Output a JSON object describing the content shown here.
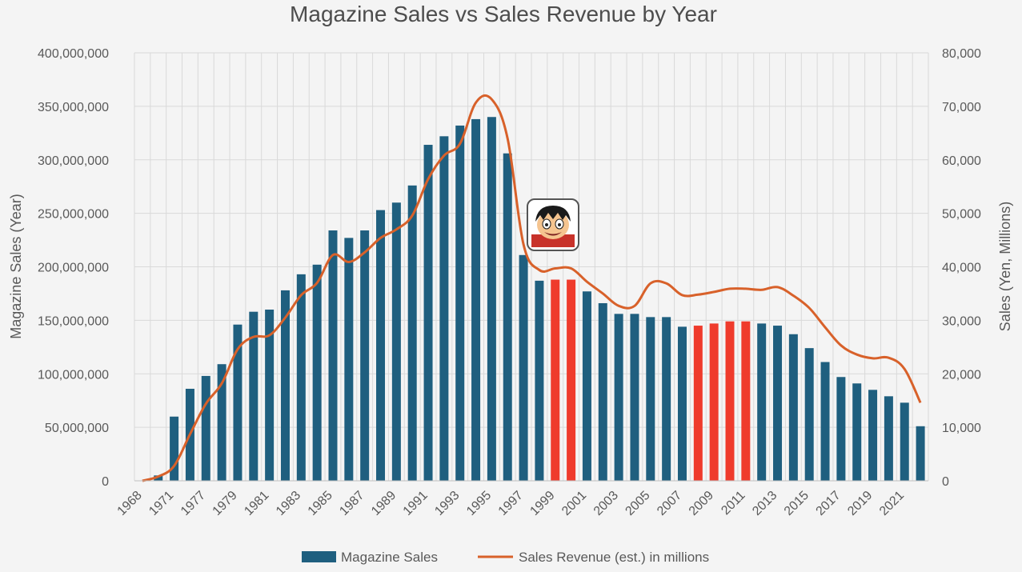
{
  "chart_data": {
    "type": "bar",
    "title": "Magazine Sales vs Sales Revenue by Year",
    "ylabel": "Magazine Sales (Year)",
    "y2label": "Sales (Yen, Millions)",
    "ylim": [
      0,
      400000000
    ],
    "y2lim": [
      0,
      80000
    ],
    "y_ticks": [
      "0",
      "50,000,000",
      "100,000,000",
      "150,000,000",
      "200,000,000",
      "250,000,000",
      "300,000,000",
      "350,000,000",
      "400,000,000"
    ],
    "y2_ticks": [
      "0",
      "10,000",
      "20,000",
      "30,000",
      "40,000",
      "50,000",
      "60,000",
      "70,000",
      "80,000"
    ],
    "categories": [
      "1968",
      "1969",
      "1971",
      "1972",
      "1977",
      "1978",
      "1979",
      "1980",
      "1981",
      "1982",
      "1983",
      "1984",
      "1985",
      "1986",
      "1987",
      "1988",
      "1989",
      "1990",
      "1991",
      "1992",
      "1993",
      "1994",
      "1995",
      "1996",
      "1997",
      "1998",
      "1999",
      "2000",
      "2001",
      "2002",
      "2003",
      "2004",
      "2005",
      "2006",
      "2007",
      "2008",
      "2009",
      "2010",
      "2011",
      "2012",
      "2013",
      "2014",
      "2015",
      "2016",
      "2017",
      "2018",
      "2019",
      "2020",
      "2021",
      "2022"
    ],
    "x_tick_labels": [
      "1968",
      "1971",
      "1977",
      "1979",
      "1981",
      "1983",
      "1985",
      "1987",
      "1989",
      "1991",
      "1993",
      "1995",
      "1997",
      "1999",
      "2001",
      "2003",
      "2005",
      "2007",
      "2009",
      "2011",
      "2013",
      "2015",
      "2017",
      "2019",
      "2021"
    ],
    "grid": true,
    "legend_position": "bottom",
    "series": [
      {
        "name": "Magazine Sales",
        "type": "bar",
        "axis": "left",
        "color": "#1f5f7f",
        "highlight_color": "#ef3b2c",
        "highlight": [
          "1999",
          "2000",
          "2008",
          "2009",
          "2010",
          "2011"
        ],
        "values": [
          0,
          5000000,
          60000000,
          86000000,
          98000000,
          109000000,
          146000000,
          158000000,
          160000000,
          178000000,
          193000000,
          202000000,
          234000000,
          227000000,
          234000000,
          253000000,
          260000000,
          276000000,
          314000000,
          322000000,
          332000000,
          338000000,
          340000000,
          306000000,
          211000000,
          187000000,
          188000000,
          188000000,
          177000000,
          166000000,
          156000000,
          156000000,
          153000000,
          153000000,
          144000000,
          145000000,
          147000000,
          149000000,
          149000000,
          147000000,
          145000000,
          137000000,
          124000000,
          111000000,
          97000000,
          91000000,
          85000000,
          79000000,
          73000000,
          51000000
        ]
      },
      {
        "name": "Sales Revenue (est.) in millions",
        "type": "line",
        "axis": "right",
        "color": "#d8612a",
        "values": [
          0,
          800,
          2800,
          8700,
          14400,
          18200,
          24600,
          26900,
          27200,
          30500,
          34700,
          37000,
          42200,
          40900,
          42700,
          45400,
          47000,
          49600,
          56400,
          60800,
          63000,
          70700,
          71300,
          64000,
          44200,
          39400,
          39700,
          39700,
          37200,
          35000,
          32700,
          32700,
          36900,
          36900,
          34700,
          34800,
          35300,
          35900,
          35900,
          35700,
          36200,
          34600,
          32300,
          28700,
          25300,
          23600,
          22900,
          23000,
          20900,
          14600
        ]
      }
    ]
  }
}
